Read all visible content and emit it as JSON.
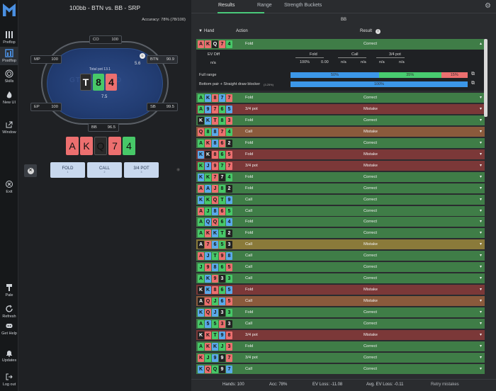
{
  "sidebar": {
    "items": [
      {
        "label": "Preflop",
        "icon": "bars-icon"
      },
      {
        "label": "Postflop",
        "icon": "chart-icon"
      },
      {
        "label": "Skills",
        "icon": "target-icon"
      },
      {
        "label": "New UI",
        "icon": "flame-icon"
      },
      {
        "label": "Window",
        "icon": "external-icon"
      },
      {
        "label": "Exit",
        "icon": "exit-icon"
      },
      {
        "label": "Pale",
        "icon": "brush-icon"
      },
      {
        "label": "Refresh",
        "icon": "refresh-icon"
      },
      {
        "label": "Get Help",
        "icon": "discord-icon"
      },
      {
        "label": "Updates",
        "icon": "bell-icon"
      },
      {
        "label": "Log out",
        "icon": "logout-icon"
      }
    ]
  },
  "left": {
    "title": "100bb - BTN vs. BB - SRP",
    "accuracy": "Accuracy: 78% (78/100)",
    "watermark": "GTO WIZARD",
    "total_pot": "Total pot 13.1",
    "pot": "7.5",
    "btn_bet": "5.6",
    "seats": {
      "co": {
        "name": "CO",
        "stack": "100"
      },
      "mp": {
        "name": "MP",
        "stack": "100"
      },
      "btn": {
        "name": "BTN",
        "stack": "90.9"
      },
      "ep": {
        "name": "EP",
        "stack": "100"
      },
      "sb": {
        "name": "SB",
        "stack": "99.5"
      },
      "bb": {
        "name": "BB",
        "stack": "96.5"
      }
    },
    "board": [
      {
        "rank": "T",
        "color": "black"
      },
      {
        "rank": "8",
        "color": "green"
      },
      {
        "rank": "4",
        "color": "red"
      }
    ],
    "hero": [
      {
        "rank": "A",
        "color": "red"
      },
      {
        "rank": "K",
        "color": "red"
      },
      {
        "rank": "Q",
        "color": "black"
      },
      {
        "rank": "7",
        "color": "red"
      },
      {
        "rank": "4",
        "color": "green"
      }
    ],
    "actions": [
      {
        "label": "FOLD",
        "key": "1"
      },
      {
        "label": "CALL",
        "key": "2"
      },
      {
        "label": "3/4 POT",
        "key": "3"
      }
    ]
  },
  "right": {
    "tabs": [
      "Results",
      "Range",
      "Strength Buckets"
    ],
    "player": "BB",
    "headers": {
      "hand": "Hand",
      "action": "Action",
      "result": "Result"
    },
    "expanded": {
      "ev_diff_label": "EV Diff",
      "ev_diff": "n/a",
      "fold_label": "Fold",
      "fold_pct": "100%",
      "fold_ev": "0.00",
      "call_label": "Call",
      "call_pct": "n/a",
      "call_ev": "n/a",
      "bet_label": "3/4 pot",
      "bet_pct": "n/a",
      "bet_ev": "n/a",
      "full_range_label": "Full range",
      "full_range": {
        "fold": "50%",
        "call": "35%",
        "bet": "15%",
        "fold_v": 50,
        "call_v": 35,
        "bet_v": 15
      },
      "bucket_label": "Bottom pair + Straight draw blocker",
      "bucket_pct": "(3.25%)",
      "bucket_fold": "100%"
    },
    "rows": [
      {
        "cards": [
          [
            "A",
            "red"
          ],
          [
            "K",
            "red"
          ],
          [
            "Q",
            "black"
          ],
          [
            "7",
            "red"
          ],
          [
            "4",
            "green"
          ]
        ],
        "action": "Fold",
        "result": "Correct"
      },
      {
        "cards": [
          [
            "A",
            "green"
          ],
          [
            "K",
            "blue"
          ],
          [
            "8",
            "red"
          ],
          [
            "7",
            "blue"
          ],
          [
            "7",
            "red"
          ]
        ],
        "action": "Fold",
        "result": "Correct"
      },
      {
        "cards": [
          [
            "A",
            "green"
          ],
          [
            "9",
            "blue"
          ],
          [
            "7",
            "red"
          ],
          [
            "6",
            "green"
          ],
          [
            "5",
            "blue"
          ]
        ],
        "action": "3/4 pot",
        "result": "Mistake"
      },
      {
        "cards": [
          [
            "K",
            "black"
          ],
          [
            "K",
            "blue"
          ],
          [
            "T",
            "red"
          ],
          [
            "8",
            "green"
          ],
          [
            "3",
            "red"
          ]
        ],
        "action": "Fold",
        "result": "Correct"
      },
      {
        "cards": [
          [
            "Q",
            "red"
          ],
          [
            "8",
            "green"
          ],
          [
            "8",
            "blue"
          ],
          [
            "7",
            "red"
          ],
          [
            "4",
            "green"
          ]
        ],
        "action": "Call",
        "result": "Mistake"
      },
      {
        "cards": [
          [
            "A",
            "green"
          ],
          [
            "K",
            "red"
          ],
          [
            "8",
            "blue"
          ],
          [
            "6",
            "red"
          ],
          [
            "2",
            "black"
          ]
        ],
        "action": "Fold",
        "result": "Correct"
      },
      {
        "cards": [
          [
            "K",
            "blue"
          ],
          [
            "K",
            "black"
          ],
          [
            "8",
            "red"
          ],
          [
            "6",
            "green"
          ],
          [
            "5",
            "red"
          ]
        ],
        "action": "Fold",
        "result": "Mistake"
      },
      {
        "cards": [
          [
            "K",
            "green"
          ],
          [
            "J",
            "blue"
          ],
          [
            "9",
            "red"
          ],
          [
            "7",
            "green"
          ],
          [
            "7",
            "red"
          ]
        ],
        "action": "3/4 pot",
        "result": "Mistake"
      },
      {
        "cards": [
          [
            "K",
            "blue"
          ],
          [
            "K",
            "green"
          ],
          [
            "7",
            "red"
          ],
          [
            "7",
            "black"
          ],
          [
            "4",
            "green"
          ]
        ],
        "action": "Fold",
        "result": "Correct"
      },
      {
        "cards": [
          [
            "A",
            "red"
          ],
          [
            "A",
            "blue"
          ],
          [
            "J",
            "red"
          ],
          [
            "8",
            "green"
          ],
          [
            "2",
            "black"
          ]
        ],
        "action": "Fold",
        "result": "Correct"
      },
      {
        "cards": [
          [
            "K",
            "blue"
          ],
          [
            "K",
            "green"
          ],
          [
            "Q",
            "red"
          ],
          [
            "T",
            "green"
          ],
          [
            "9",
            "blue"
          ]
        ],
        "action": "Call",
        "result": "Correct"
      },
      {
        "cards": [
          [
            "A",
            "red"
          ],
          [
            "J",
            "green"
          ],
          [
            "8",
            "blue"
          ],
          [
            "6",
            "red"
          ],
          [
            "5",
            "green"
          ]
        ],
        "action": "Call",
        "result": "Correct"
      },
      {
        "cards": [
          [
            "A",
            "green"
          ],
          [
            "Q",
            "blue"
          ],
          [
            "Q",
            "red"
          ],
          [
            "6",
            "green"
          ],
          [
            "4",
            "blue"
          ]
        ],
        "action": "Fold",
        "result": "Correct"
      },
      {
        "cards": [
          [
            "A",
            "green"
          ],
          [
            "K",
            "red"
          ],
          [
            "K",
            "blue"
          ],
          [
            "T",
            "green"
          ],
          [
            "2",
            "black"
          ]
        ],
        "action": "Fold",
        "result": "Correct"
      },
      {
        "cards": [
          [
            "A",
            "black"
          ],
          [
            "7",
            "red"
          ],
          [
            "6",
            "blue"
          ],
          [
            "5",
            "green"
          ],
          [
            "3",
            "black"
          ]
        ],
        "action": "Call",
        "result": "Mistake"
      },
      {
        "cards": [
          [
            "A",
            "red"
          ],
          [
            "J",
            "blue"
          ],
          [
            "T",
            "green"
          ],
          [
            "9",
            "red"
          ],
          [
            "8",
            "blue"
          ]
        ],
        "action": "Call",
        "result": "Correct"
      },
      {
        "cards": [
          [
            "J",
            "green"
          ],
          [
            "9",
            "red"
          ],
          [
            "8",
            "blue"
          ],
          [
            "6",
            "green"
          ],
          [
            "5",
            "red"
          ]
        ],
        "action": "Call",
        "result": "Correct"
      },
      {
        "cards": [
          [
            "A",
            "green"
          ],
          [
            "K",
            "blue"
          ],
          [
            "9",
            "red"
          ],
          [
            "3",
            "black"
          ],
          [
            "3",
            "green"
          ]
        ],
        "action": "Call",
        "result": "Correct"
      },
      {
        "cards": [
          [
            "K",
            "black"
          ],
          [
            "K",
            "blue"
          ],
          [
            "8",
            "red"
          ],
          [
            "6",
            "green"
          ],
          [
            "5",
            "blue"
          ]
        ],
        "action": "Fold",
        "result": "Mistake"
      },
      {
        "cards": [
          [
            "A",
            "black"
          ],
          [
            "Q",
            "red"
          ],
          [
            "J",
            "green"
          ],
          [
            "6",
            "blue"
          ],
          [
            "5",
            "red"
          ]
        ],
        "action": "Call",
        "result": "Mistake"
      },
      {
        "cards": [
          [
            "K",
            "blue"
          ],
          [
            "Q",
            "red"
          ],
          [
            "J",
            "blue"
          ],
          [
            "3",
            "black"
          ],
          [
            "3",
            "green"
          ]
        ],
        "action": "Fold",
        "result": "Correct"
      },
      {
        "cards": [
          [
            "A",
            "green"
          ],
          [
            "5",
            "blue"
          ],
          [
            "5",
            "green"
          ],
          [
            "3",
            "red"
          ],
          [
            "3",
            "black"
          ]
        ],
        "action": "Call",
        "result": "Correct"
      },
      {
        "cards": [
          [
            "K",
            "black"
          ],
          [
            "K",
            "red"
          ],
          [
            "T",
            "green"
          ],
          [
            "9",
            "blue"
          ],
          [
            "8",
            "red"
          ]
        ],
        "action": "3/4 pot",
        "result": "Mistake"
      },
      {
        "cards": [
          [
            "A",
            "green"
          ],
          [
            "K",
            "red"
          ],
          [
            "K",
            "blue"
          ],
          [
            "J",
            "green"
          ],
          [
            "3",
            "red"
          ]
        ],
        "action": "Fold",
        "result": "Correct"
      },
      {
        "cards": [
          [
            "K",
            "red"
          ],
          [
            "J",
            "green"
          ],
          [
            "9",
            "blue"
          ],
          [
            "9",
            "black"
          ],
          [
            "7",
            "red"
          ]
        ],
        "action": "3/4 pot",
        "result": "Correct"
      },
      {
        "cards": [
          [
            "K",
            "blue"
          ],
          [
            "Q",
            "red"
          ],
          [
            "Q",
            "green"
          ],
          [
            "9",
            "black"
          ],
          [
            "7",
            "blue"
          ]
        ],
        "action": "Call",
        "result": "Correct"
      }
    ],
    "footer": {
      "hands": "Hands: 100",
      "acc": "Acc: 78%",
      "ev_loss": "EV Loss: -11.08",
      "avg_ev_loss": "Avg. EV Loss: -0.11",
      "retry": "Retry mistakes"
    }
  },
  "colors": {
    "correct": "#3f7d47",
    "mistake_fold": "#7b3838",
    "mistake_call": "#8a5a3c",
    "mistake_bet": "#7b3838",
    "correct_call_light": "#8e7d3e",
    "accent": "#49c97a",
    "fold_bar": "#3c97e8",
    "call_bar": "#48cc70",
    "bet_bar": "#ec6f6f"
  }
}
